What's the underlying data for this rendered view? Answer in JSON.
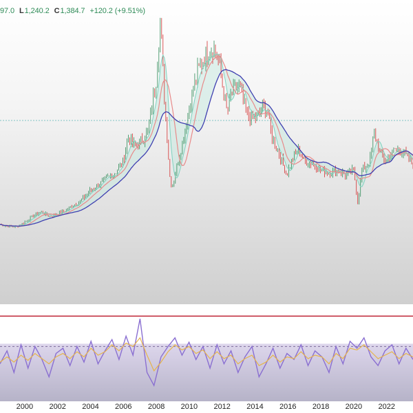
{
  "header": {
    "open_fragment": "97.0",
    "low_label": "L",
    "low_value": "1,240.2",
    "close_label": "C",
    "close_value": "1,384.7",
    "change": "+120.2 (+9.51%)"
  },
  "colors": {
    "up": "#2e8b57",
    "down": "#d32f2f",
    "ma_slow": "#3f3fb0",
    "ma_mid": "#e88a8a",
    "ma_fast": "#7fd3c0",
    "osc_line": "#8a6fd1",
    "osc_signal": "#e6b44a",
    "osc_upper_band": "#c0283a",
    "osc_mid_band": "#7a6a9a"
  },
  "chart_data": [
    {
      "type": "line",
      "x_ticks": [
        "2000",
        "2002",
        "2004",
        "2006",
        "2008",
        "2010",
        "2012",
        "2014",
        "2016",
        "2018",
        "2020",
        "2022"
      ],
      "x_range": [
        1998.5,
        2023.6
      ],
      "y_range": [
        150,
        2000
      ],
      "price_path": [
        [
          1998.5,
          260
        ],
        [
          1999.0,
          245
        ],
        [
          1999.5,
          240
        ],
        [
          2000.0,
          280
        ],
        [
          2000.5,
          330
        ],
        [
          2001.0,
          370
        ],
        [
          2001.5,
          330
        ],
        [
          2002.0,
          350
        ],
        [
          2002.5,
          380
        ],
        [
          2003.0,
          430
        ],
        [
          2003.5,
          470
        ],
        [
          2004.0,
          550
        ],
        [
          2004.5,
          600
        ],
        [
          2005.0,
          650
        ],
        [
          2005.5,
          700
        ],
        [
          2006.0,
          800
        ],
        [
          2006.3,
          1000
        ],
        [
          2006.7,
          920
        ],
        [
          2007.0,
          950
        ],
        [
          2007.5,
          1050
        ],
        [
          2008.0,
          1500
        ],
        [
          2008.25,
          2000
        ],
        [
          2008.5,
          1300
        ],
        [
          2008.85,
          620
        ],
        [
          2009.0,
          600
        ],
        [
          2009.5,
          900
        ],
        [
          2010.0,
          1250
        ],
        [
          2010.5,
          1550
        ],
        [
          2011.0,
          1700
        ],
        [
          2011.5,
          1760
        ],
        [
          2011.8,
          1650
        ],
        [
          2012.0,
          1450
        ],
        [
          2012.3,
          1200
        ],
        [
          2012.5,
          1350
        ],
        [
          2012.8,
          1400
        ],
        [
          2013.0,
          1450
        ],
        [
          2013.5,
          1200
        ],
        [
          2014.0,
          1150
        ],
        [
          2014.5,
          1250
        ],
        [
          2014.8,
          1200
        ],
        [
          2015.0,
          1000
        ],
        [
          2015.5,
          850
        ],
        [
          2015.9,
          680
        ],
        [
          2016.3,
          820
        ],
        [
          2016.6,
          900
        ],
        [
          2017.0,
          800
        ],
        [
          2017.5,
          780
        ],
        [
          2018.0,
          720
        ],
        [
          2018.5,
          700
        ],
        [
          2019.0,
          720
        ],
        [
          2019.5,
          680
        ],
        [
          2020.0,
          720
        ],
        [
          2020.25,
          450
        ],
        [
          2020.5,
          720
        ],
        [
          2020.8,
          760
        ],
        [
          2021.0,
          820
        ],
        [
          2021.25,
          1050
        ],
        [
          2021.6,
          850
        ],
        [
          2022.0,
          800
        ],
        [
          2022.5,
          900
        ],
        [
          2023.0,
          880
        ],
        [
          2023.6,
          760
        ]
      ]
    },
    {
      "type": "line",
      "x_range": [
        1998.5,
        2023.6
      ],
      "y_range": [
        0,
        100
      ],
      "series": [
        {
          "role": "oscillator",
          "values": [
            40,
            55,
            30,
            62,
            35,
            60,
            45,
            25,
            52,
            58,
            38,
            60,
            42,
            66,
            40,
            55,
            68,
            45,
            72,
            50,
            92,
            30,
            15,
            48,
            60,
            70,
            50,
            65,
            45,
            60,
            35,
            62,
            40,
            55,
            30,
            48,
            60,
            25,
            40,
            58,
            35,
            52,
            45,
            62,
            38,
            55,
            48,
            30,
            60,
            40,
            66,
            58,
            70,
            48,
            38,
            55,
            62,
            40,
            58,
            45
          ]
        },
        {
          "role": "signal",
          "values": [
            42,
            48,
            42,
            50,
            44,
            52,
            46,
            40,
            48,
            52,
            46,
            54,
            48,
            58,
            50,
            54,
            62,
            55,
            64,
            60,
            70,
            50,
            32,
            42,
            54,
            62,
            56,
            60,
            52,
            56,
            46,
            54,
            46,
            50,
            40,
            46,
            50,
            38,
            42,
            50,
            42,
            48,
            46,
            54,
            46,
            50,
            48,
            40,
            52,
            46,
            58,
            56,
            62,
            54,
            46,
            50,
            54,
            46,
            52,
            48
          ]
        }
      ],
      "bands": {
        "upper": 95,
        "middle": 60
      }
    }
  ]
}
